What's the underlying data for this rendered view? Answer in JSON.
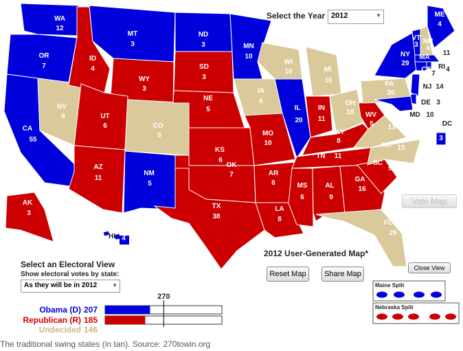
{
  "controls": {
    "year_label": "Select the Year",
    "year": "2012",
    "view_title": "Select an Electoral View",
    "view_subtitle": "Show electoral votes by state:",
    "view_option": "As they will be in 2012"
  },
  "map": {
    "title": "2012 User-Generated Map*",
    "party_colors": {
      "D": "#0000dd",
      "R": "#cc0000",
      "U": "#d9c99b"
    },
    "states": [
      {
        "abbr": "WA",
        "votes": 12,
        "party": "D"
      },
      {
        "abbr": "OR",
        "votes": 7,
        "party": "D"
      },
      {
        "abbr": "CA",
        "votes": 55,
        "party": "D"
      },
      {
        "abbr": "NV",
        "votes": 6,
        "party": "U"
      },
      {
        "abbr": "ID",
        "votes": 4,
        "party": "R"
      },
      {
        "abbr": "MT",
        "votes": 3,
        "party": "D"
      },
      {
        "abbr": "WY",
        "votes": 3,
        "party": "R"
      },
      {
        "abbr": "UT",
        "votes": 6,
        "party": "R"
      },
      {
        "abbr": "CO",
        "votes": 9,
        "party": "U"
      },
      {
        "abbr": "AZ",
        "votes": 11,
        "party": "R"
      },
      {
        "abbr": "NM",
        "votes": 5,
        "party": "D"
      },
      {
        "abbr": "ND",
        "votes": 3,
        "party": "D"
      },
      {
        "abbr": "SD",
        "votes": 3,
        "party": "R"
      },
      {
        "abbr": "NE",
        "votes": 5,
        "party": "R"
      },
      {
        "abbr": "KS",
        "votes": 6,
        "party": "R"
      },
      {
        "abbr": "OK",
        "votes": 7,
        "party": "R"
      },
      {
        "abbr": "TX",
        "votes": 38,
        "party": "R"
      },
      {
        "abbr": "MN",
        "votes": 10,
        "party": "D"
      },
      {
        "abbr": "IA",
        "votes": 6,
        "party": "U"
      },
      {
        "abbr": "MO",
        "votes": 10,
        "party": "R"
      },
      {
        "abbr": "AR",
        "votes": 6,
        "party": "R"
      },
      {
        "abbr": "LA",
        "votes": 8,
        "party": "R"
      },
      {
        "abbr": "WI",
        "votes": 10,
        "party": "U"
      },
      {
        "abbr": "IL",
        "votes": 20,
        "party": "D"
      },
      {
        "abbr": "MI",
        "votes": 16,
        "party": "U"
      },
      {
        "abbr": "IN",
        "votes": 11,
        "party": "R"
      },
      {
        "abbr": "OH",
        "votes": 18,
        "party": "U"
      },
      {
        "abbr": "KY",
        "votes": 8,
        "party": "R"
      },
      {
        "abbr": "TN",
        "votes": 11,
        "party": "R"
      },
      {
        "abbr": "MS",
        "votes": 6,
        "party": "R"
      },
      {
        "abbr": "AL",
        "votes": 9,
        "party": "R"
      },
      {
        "abbr": "GA",
        "votes": 16,
        "party": "R"
      },
      {
        "abbr": "FL",
        "votes": 29,
        "party": "U"
      },
      {
        "abbr": "SC",
        "votes": 9,
        "party": "R"
      },
      {
        "abbr": "NC",
        "votes": 15,
        "party": "U"
      },
      {
        "abbr": "VA",
        "votes": 13,
        "party": "U"
      },
      {
        "abbr": "WV",
        "votes": 5,
        "party": "R"
      },
      {
        "abbr": "PA",
        "votes": 20,
        "party": "U"
      },
      {
        "abbr": "NY",
        "votes": 29,
        "party": "D"
      },
      {
        "abbr": "VT",
        "votes": 3,
        "party": "D"
      },
      {
        "abbr": "NH",
        "votes": 4,
        "party": "U"
      },
      {
        "abbr": "ME",
        "votes": 4,
        "party": "D"
      },
      {
        "abbr": "MA",
        "votes": 11,
        "party": "D"
      },
      {
        "abbr": "RI",
        "votes": 4,
        "party": "D"
      },
      {
        "abbr": "CT",
        "votes": 7,
        "party": "D"
      },
      {
        "abbr": "NJ",
        "votes": 14,
        "party": "D"
      },
      {
        "abbr": "DE",
        "votes": 3,
        "party": "D"
      },
      {
        "abbr": "MD",
        "votes": 10,
        "party": "D"
      },
      {
        "abbr": "DC",
        "votes": 3,
        "party": "D"
      },
      {
        "abbr": "AK",
        "votes": 3,
        "party": "R"
      },
      {
        "abbr": "HI",
        "votes": 4,
        "party": "D"
      }
    ]
  },
  "buttons": {
    "vote_map": "Vote Map",
    "reset_map": "Reset Map",
    "share_map": "Share Map",
    "close_view": "Close View"
  },
  "tally": {
    "threshold": 270,
    "rows": [
      {
        "label": "Obama (D)",
        "value": 207,
        "color": "#0000dd"
      },
      {
        "label": "Republican (R)",
        "value": 185,
        "color": "#cc0000"
      },
      {
        "label": "Undecided",
        "value": 146,
        "color": "#c8b888"
      }
    ]
  },
  "splits": {
    "maine": "Maine Split",
    "nebraska": "Nebraska Split"
  },
  "caption": "The traditional swing states (in tan). Source: 270towin.org"
}
